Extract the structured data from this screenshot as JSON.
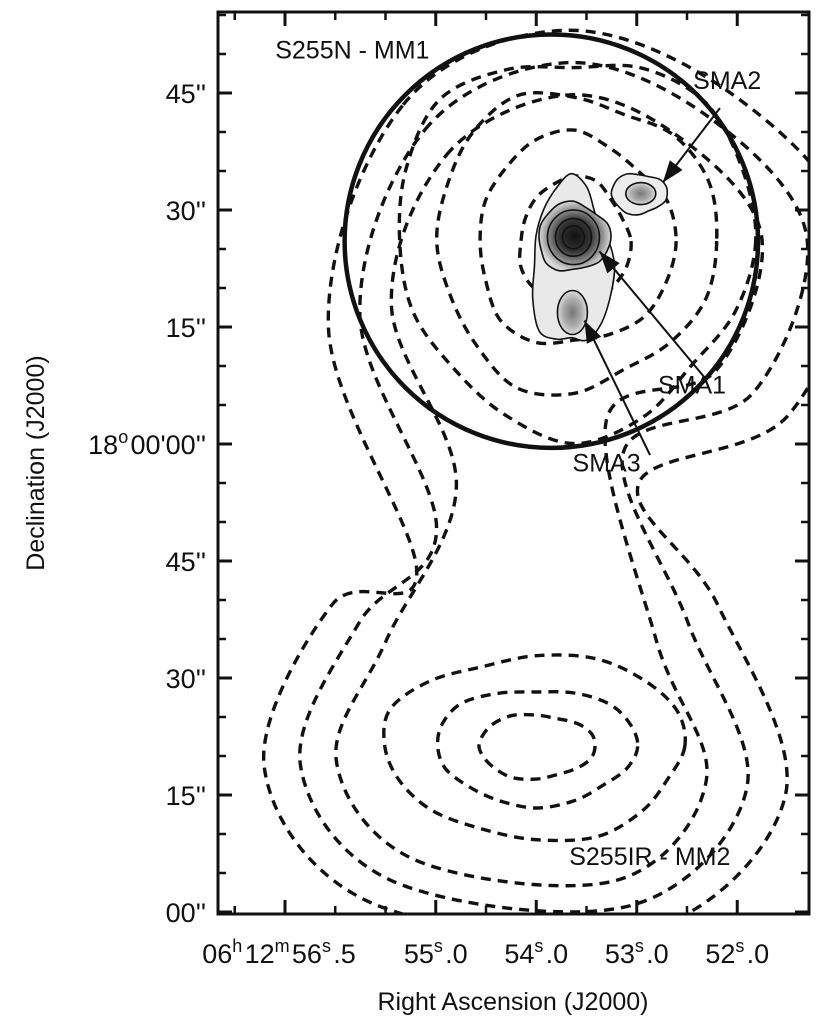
{
  "chart_data": {
    "type": "contour",
    "xlabel": "Right Ascension (J2000)",
    "ylabel": "Declination (J2000)",
    "x_ticks": [
      {
        "label": "06h12m56s.5",
        "value_s": 56.5,
        "parts": [
          [
            "06",
            ""
          ],
          [
            "h",
            "sup"
          ],
          [
            "12",
            ""
          ],
          [
            "m",
            "sup"
          ],
          [
            "56",
            ""
          ],
          [
            "s",
            "sup"
          ],
          [
            ".5",
            ""
          ]
        ]
      },
      {
        "label": "55s.0",
        "value_s": 55.0,
        "parts": [
          [
            "55",
            ""
          ],
          [
            "s",
            "sup"
          ],
          [
            ".0",
            ""
          ]
        ]
      },
      {
        "label": "54s.0",
        "value_s": 54.0,
        "parts": [
          [
            "54",
            ""
          ],
          [
            "s",
            "sup"
          ],
          [
            ".0",
            ""
          ]
        ]
      },
      {
        "label": "53s.0",
        "value_s": 53.0,
        "parts": [
          [
            "53",
            ""
          ],
          [
            "s",
            "sup"
          ],
          [
            ".0",
            ""
          ]
        ]
      },
      {
        "label": "52s.0",
        "value_s": 52.0,
        "parts": [
          [
            "52",
            ""
          ],
          [
            "s",
            "sup"
          ],
          [
            ".0",
            ""
          ]
        ]
      }
    ],
    "y_ticks": [
      {
        "label": "00''",
        "value_arcsec": -60
      },
      {
        "label": "15''",
        "value_arcsec": -45
      },
      {
        "label": "30''",
        "value_arcsec": -30
      },
      {
        "label": "45''",
        "value_arcsec": -15
      },
      {
        "label": "18o00'00''",
        "value_arcsec": 0,
        "parts": [
          [
            "18",
            ""
          ],
          [
            "o",
            "sup"
          ],
          [
            "00'00''",
            ""
          ]
        ]
      },
      {
        "label": "15''",
        "value_arcsec": 15
      },
      {
        "label": "30''",
        "value_arcsec": 30
      },
      {
        "label": "45''",
        "value_arcsec": 45
      }
    ],
    "annotations": [
      {
        "text": "S255N - MM1",
        "ra_s": 55.83,
        "dec_arcsec": 50.6
      },
      {
        "text": "S255IR - MM2",
        "ra_s": 52.87,
        "dec_arcsec": -52.8
      }
    ],
    "sources": [
      {
        "name": "SMA1",
        "ra_s": 53.63,
        "dec_arcsec": 26.5,
        "label_ra_s": 52.45,
        "label_dec_arcsec": 6.5
      },
      {
        "name": "SMA2",
        "ra_s": 52.92,
        "dec_arcsec": 33.0,
        "label_ra_s": 52.1,
        "label_dec_arcsec": 45.5
      },
      {
        "name": "SMA3",
        "ra_s": 53.66,
        "dec_arcsec": 17.5,
        "label_ra_s": 53.3,
        "label_dec_arcsec": -3.5
      }
    ],
    "primary_beam_circle": {
      "center_ra_s": 53.85,
      "center_dec_arcsec": 26.0,
      "radius_arcsec": 26.5
    },
    "peaks": [
      {
        "name": "MM1",
        "ra_s": 53.7,
        "dec_arcsec": 25.5
      },
      {
        "name": "MM2",
        "ra_s": 54.0,
        "dec_arcsec": -38.0
      }
    ]
  },
  "colors": {
    "ink": "#111111",
    "background": "#ffffff"
  }
}
